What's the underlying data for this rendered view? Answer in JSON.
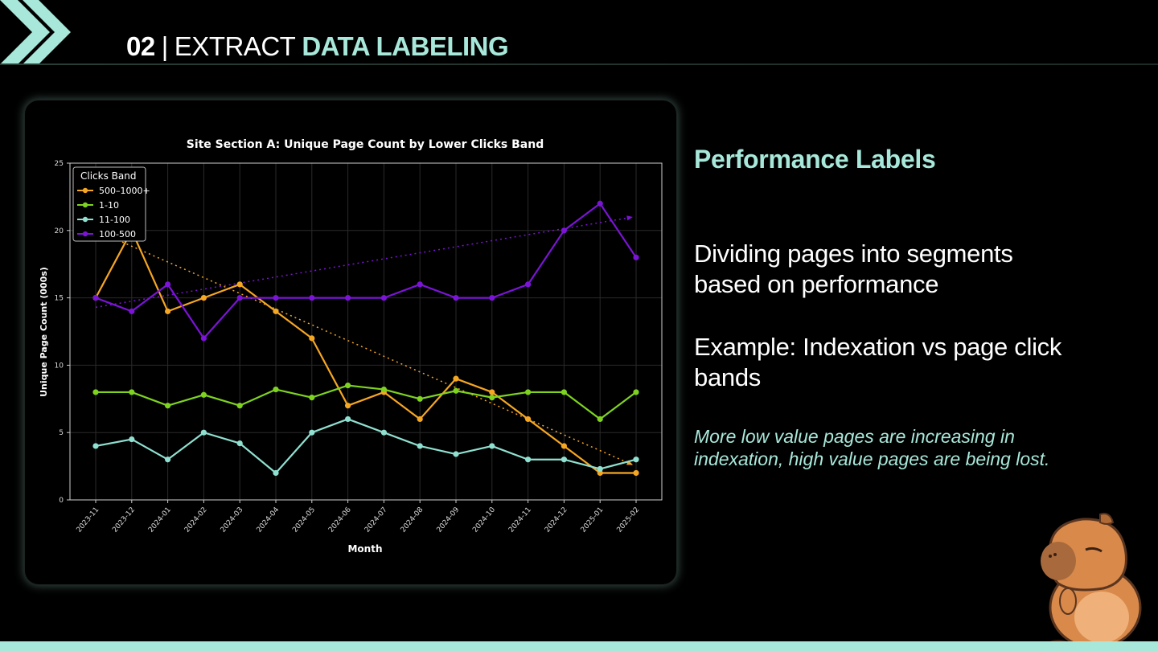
{
  "header": {
    "number": "02",
    "separator": "|",
    "prefix": "EXTRACT",
    "accent": "DATA LABELING"
  },
  "panel": {
    "heading": "Performance Labels",
    "paragraph1": "Dividing pages into segments based on performance",
    "paragraph2": "Example: Indexation vs page click bands",
    "note": "More low value pages are increasing in indexation, high value pages are being lost."
  },
  "colors": {
    "accent": "#a8e8da",
    "background": "#000000",
    "series_orange": "#f5a623",
    "series_green": "#7ed321",
    "series_cyan": "#8fe0d0",
    "series_purple": "#7b14d6"
  },
  "icons": {
    "logo": "chevron-icon",
    "mascot": "capybara-icon"
  },
  "chart_data": {
    "type": "line",
    "title": "Site Section A: Unique Page Count by Lower Clicks Band",
    "xlabel": "Month",
    "ylabel": "Unique Page Count (000s)",
    "ylim": [
      0,
      25
    ],
    "yticks": [
      0,
      5,
      10,
      15,
      20,
      25
    ],
    "grid": true,
    "legend_title": "Clicks Band",
    "legend_position": "top-left",
    "categories": [
      "2023-11",
      "2023-12",
      "2024-01",
      "2024-02",
      "2024-03",
      "2024-04",
      "2024-05",
      "2024-06",
      "2024-07",
      "2024-08",
      "2024-09",
      "2024-10",
      "2024-11",
      "2024-12",
      "2025-01",
      "2025-02"
    ],
    "series": [
      {
        "name": "500–1000+",
        "color": "#f5a623",
        "values": [
          15,
          20,
          14,
          15,
          16,
          14,
          12,
          7,
          8,
          6,
          9,
          8,
          6,
          4,
          2,
          2
        ],
        "trend": [
          20,
          2.6
        ]
      },
      {
        "name": "1-10",
        "color": "#7ed321",
        "values": [
          8,
          8,
          7,
          7.8,
          7,
          8.2,
          7.6,
          8.5,
          8.2,
          7.5,
          8.1,
          7.6,
          8,
          8,
          6,
          8
        ]
      },
      {
        "name": "11-100",
        "color": "#8fe0d0",
        "values": [
          4,
          4.5,
          3,
          5,
          4.2,
          2,
          5,
          6,
          5,
          4,
          3.4,
          4,
          3,
          3,
          2.3,
          3
        ]
      },
      {
        "name": "100-500",
        "color": "#7b14d6",
        "values": [
          15,
          14,
          16,
          12,
          15,
          15,
          15,
          15,
          15,
          16,
          15,
          15,
          16,
          20,
          22,
          18
        ],
        "trend": [
          14.3,
          21
        ]
      }
    ]
  }
}
